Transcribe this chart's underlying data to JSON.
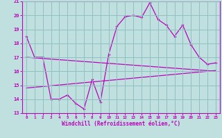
{
  "xlabel": "Windchill (Refroidissement éolien,°C)",
  "bg_color": "#c0e0e0",
  "grid_color": "#90c0c0",
  "line_color": "#bb00bb",
  "xlim": [
    -0.5,
    23.5
  ],
  "ylim": [
    13,
    21
  ],
  "yticks": [
    13,
    14,
    15,
    16,
    17,
    18,
    19,
    20,
    21
  ],
  "xticks": [
    0,
    1,
    2,
    3,
    4,
    5,
    6,
    7,
    8,
    9,
    10,
    11,
    12,
    13,
    14,
    15,
    16,
    17,
    18,
    19,
    20,
    21,
    22,
    23
  ],
  "series1_x": [
    0,
    1,
    2,
    3,
    4,
    5,
    6,
    7,
    8,
    9,
    10,
    11,
    12,
    13,
    14,
    15,
    16,
    17,
    18,
    19,
    20,
    21,
    22,
    23
  ],
  "series1_y": [
    18.5,
    17.0,
    17.0,
    14.0,
    14.0,
    14.3,
    13.7,
    13.3,
    15.4,
    13.8,
    17.2,
    19.2,
    19.9,
    20.0,
    19.85,
    20.9,
    19.7,
    19.3,
    18.5,
    19.3,
    17.9,
    17.0,
    16.5,
    16.6
  ],
  "series2_x": [
    0,
    23
  ],
  "series2_y": [
    17.0,
    16.0
  ],
  "series3_x": [
    0,
    23
  ],
  "series3_y": [
    14.8,
    16.05
  ]
}
